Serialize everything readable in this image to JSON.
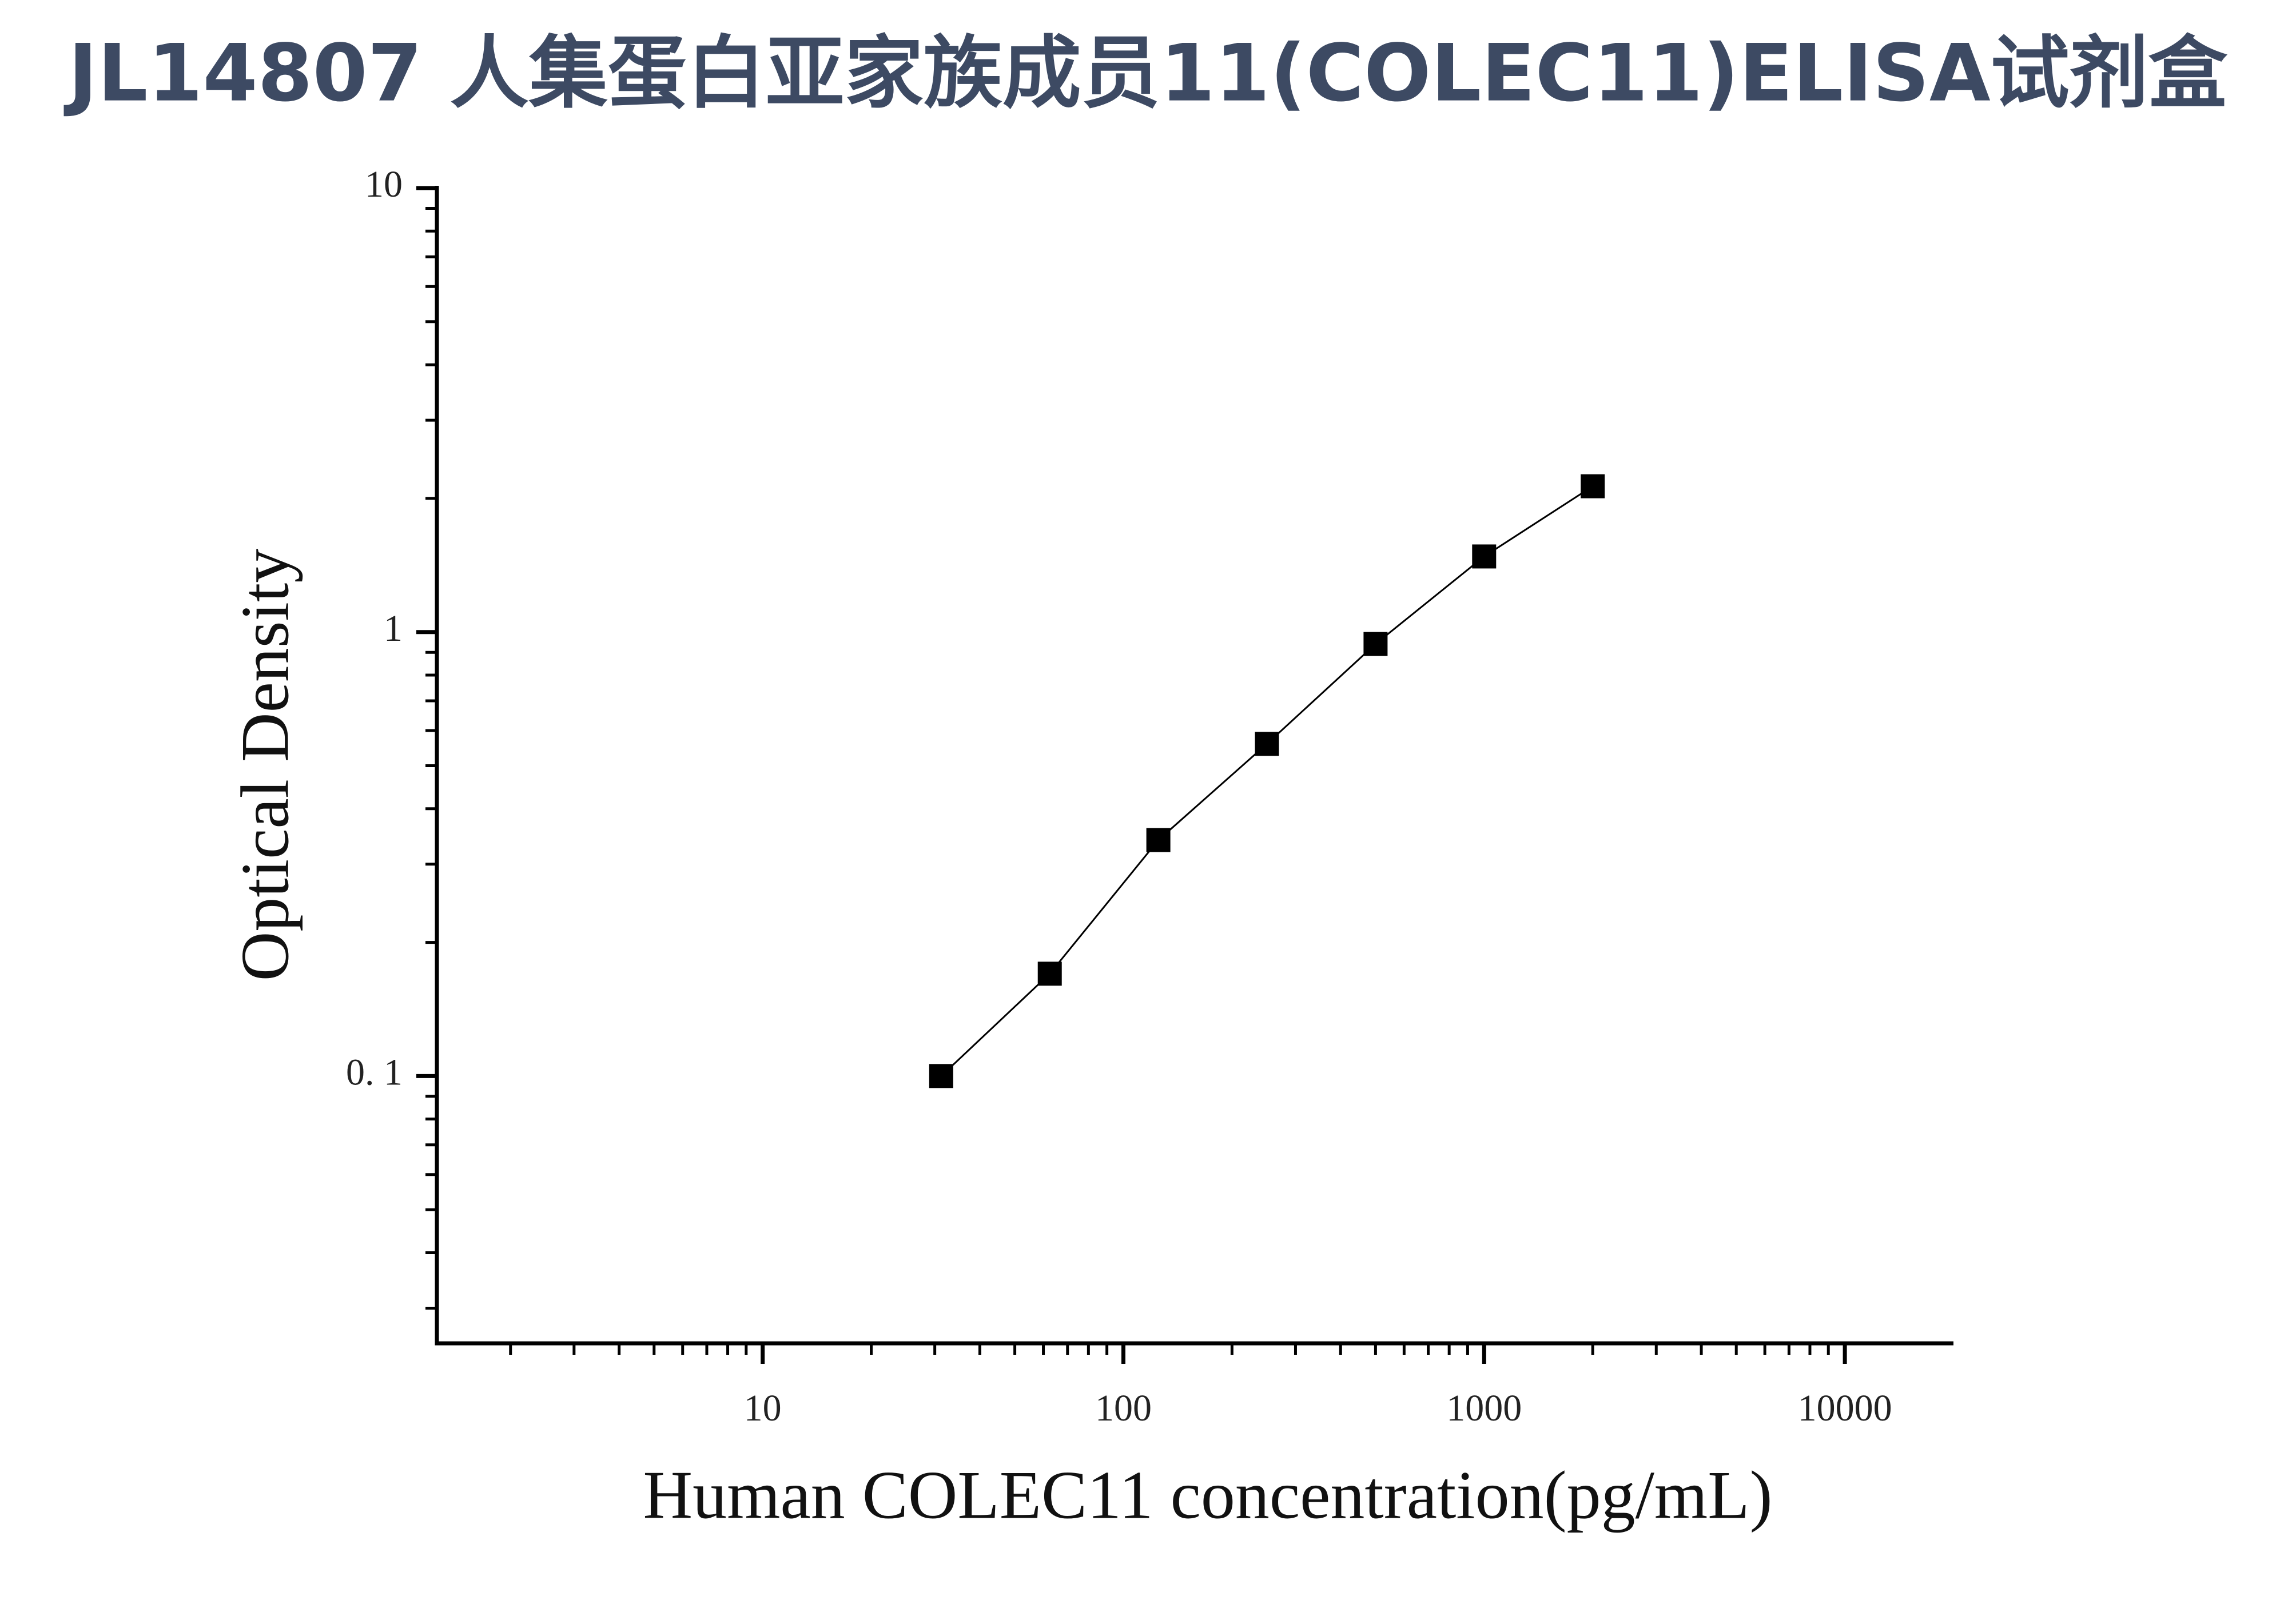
{
  "chart_data": {
    "type": "scatter-line",
    "title": "JL14807 人集蛋白亚家族成员11(COLEC11)ELISA试剂盒",
    "x_label": "Human COLEC11 concentration(pg/mL)",
    "y_label": "Optical Density",
    "x": [
      31.25,
      62.5,
      125,
      250,
      500,
      1000,
      2000
    ],
    "series": [
      {
        "color": "#000000",
        "values": [
          0.1,
          0.17,
          0.34,
          0.56,
          0.94,
          1.48,
          2.13
        ]
      }
    ],
    "xlim": [
      1.25,
      20000
    ],
    "ylim": [
      0.025,
      10
    ],
    "xticks": [
      10,
      100,
      1000,
      10000
    ],
    "yticks": [
      {
        "value": 0.1,
        "label": "0. 1"
      },
      1,
      10
    ],
    "xscale": "log",
    "yscale": "log",
    "grid": false
  }
}
